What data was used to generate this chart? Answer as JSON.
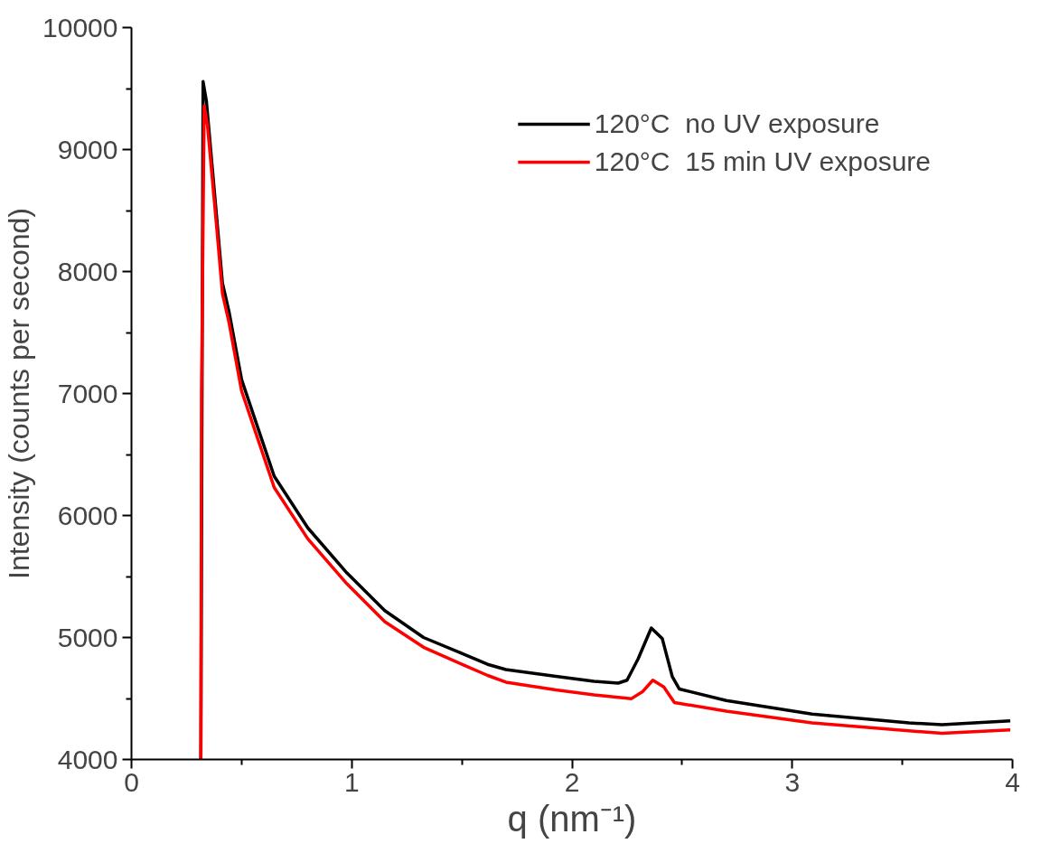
{
  "chart_data": {
    "type": "line",
    "xlabel": "q (nm⁻¹)",
    "ylabel": "Intensity (counts per second)",
    "xlim": [
      0,
      4
    ],
    "ylim": [
      4000,
      10000
    ],
    "xticks": [
      0,
      1,
      2,
      3,
      4
    ],
    "yticks": [
      4000,
      5000,
      6000,
      7000,
      8000,
      9000,
      10000
    ],
    "grid": false,
    "legend": "top right",
    "line_style": "solid",
    "marker": "none",
    "series": [
      {
        "name": "120°C  no UV exposure",
        "color": "#000000",
        "x": [
          0.315,
          0.325,
          0.34,
          0.386,
          0.413,
          0.443,
          0.5,
          0.648,
          0.8,
          0.978,
          1.15,
          1.326,
          1.5,
          1.617,
          1.7,
          1.927,
          2.1,
          2.21,
          2.25,
          2.3,
          2.36,
          2.41,
          2.455,
          2.487,
          2.7,
          3.09,
          3.53,
          3.68,
          3.99
        ],
        "values": [
          4000,
          9557,
          9400,
          8461,
          7907,
          7670,
          7114,
          6322,
          5900,
          5529,
          5220,
          5000,
          4870,
          4780,
          4737,
          4681,
          4640,
          4626,
          4650,
          4824,
          5078,
          4990,
          4681,
          4578,
          4483,
          4372,
          4300,
          4285,
          4317
        ]
      },
      {
        "name": "120°C  15 min UV exposure",
        "color": "#ff0000",
        "x": [
          0.315,
          0.318,
          0.33,
          0.345,
          0.386,
          0.413,
          0.443,
          0.5,
          0.648,
          0.8,
          0.978,
          1.15,
          1.326,
          1.5,
          1.617,
          1.7,
          1.927,
          2.1,
          2.27,
          2.32,
          2.367,
          2.417,
          2.465,
          2.7,
          3.09,
          3.68,
          3.99
        ],
        "values": [
          4000,
          7000,
          9360,
          9200,
          8380,
          7820,
          7580,
          7020,
          6230,
          5810,
          5440,
          5130,
          4920,
          4780,
          4689,
          4634,
          4570,
          4530,
          4499,
          4555,
          4650,
          4594,
          4467,
          4396,
          4300,
          4214,
          4242
        ]
      }
    ]
  }
}
